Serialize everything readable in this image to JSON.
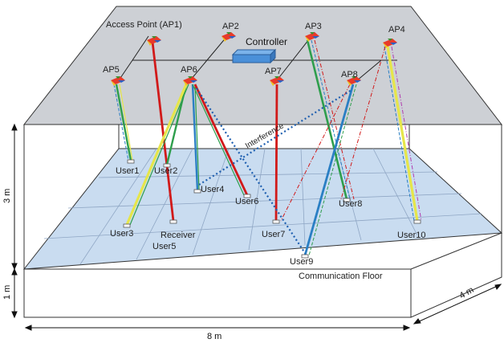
{
  "diagram": {
    "access_points": [
      {
        "id": "AP1",
        "label": "Access Point (AP1)"
      },
      {
        "id": "AP2",
        "label": "AP2"
      },
      {
        "id": "AP3",
        "label": "AP3"
      },
      {
        "id": "AP4",
        "label": "AP4"
      },
      {
        "id": "AP5",
        "label": "AP5"
      },
      {
        "id": "AP6",
        "label": "AP6"
      },
      {
        "id": "AP7",
        "label": "AP7"
      },
      {
        "id": "AP8",
        "label": "AP8"
      }
    ],
    "controller_label": "Controller",
    "interference_label": "Interference",
    "users": [
      "User1",
      "User2",
      "User3",
      "User4",
      "Receiver",
      "User5",
      "User6",
      "User7",
      "User8",
      "User9",
      "User10"
    ],
    "floor_label": "Communication Floor",
    "dimensions": {
      "width": "8 m",
      "depth": "4 m",
      "height": "3 m",
      "floor_height": "1 m"
    },
    "colors": {
      "ceiling": "#cdd0d5",
      "floor": "#c9dcf0",
      "grid": "#8fa6c4",
      "red": "#d11a1a",
      "green": "#2e9e4c",
      "yellow": "#e6e64a",
      "blue": "#2a7fc4",
      "magenta": "#b03cb0",
      "dotted": "#1e5fb0"
    }
  }
}
